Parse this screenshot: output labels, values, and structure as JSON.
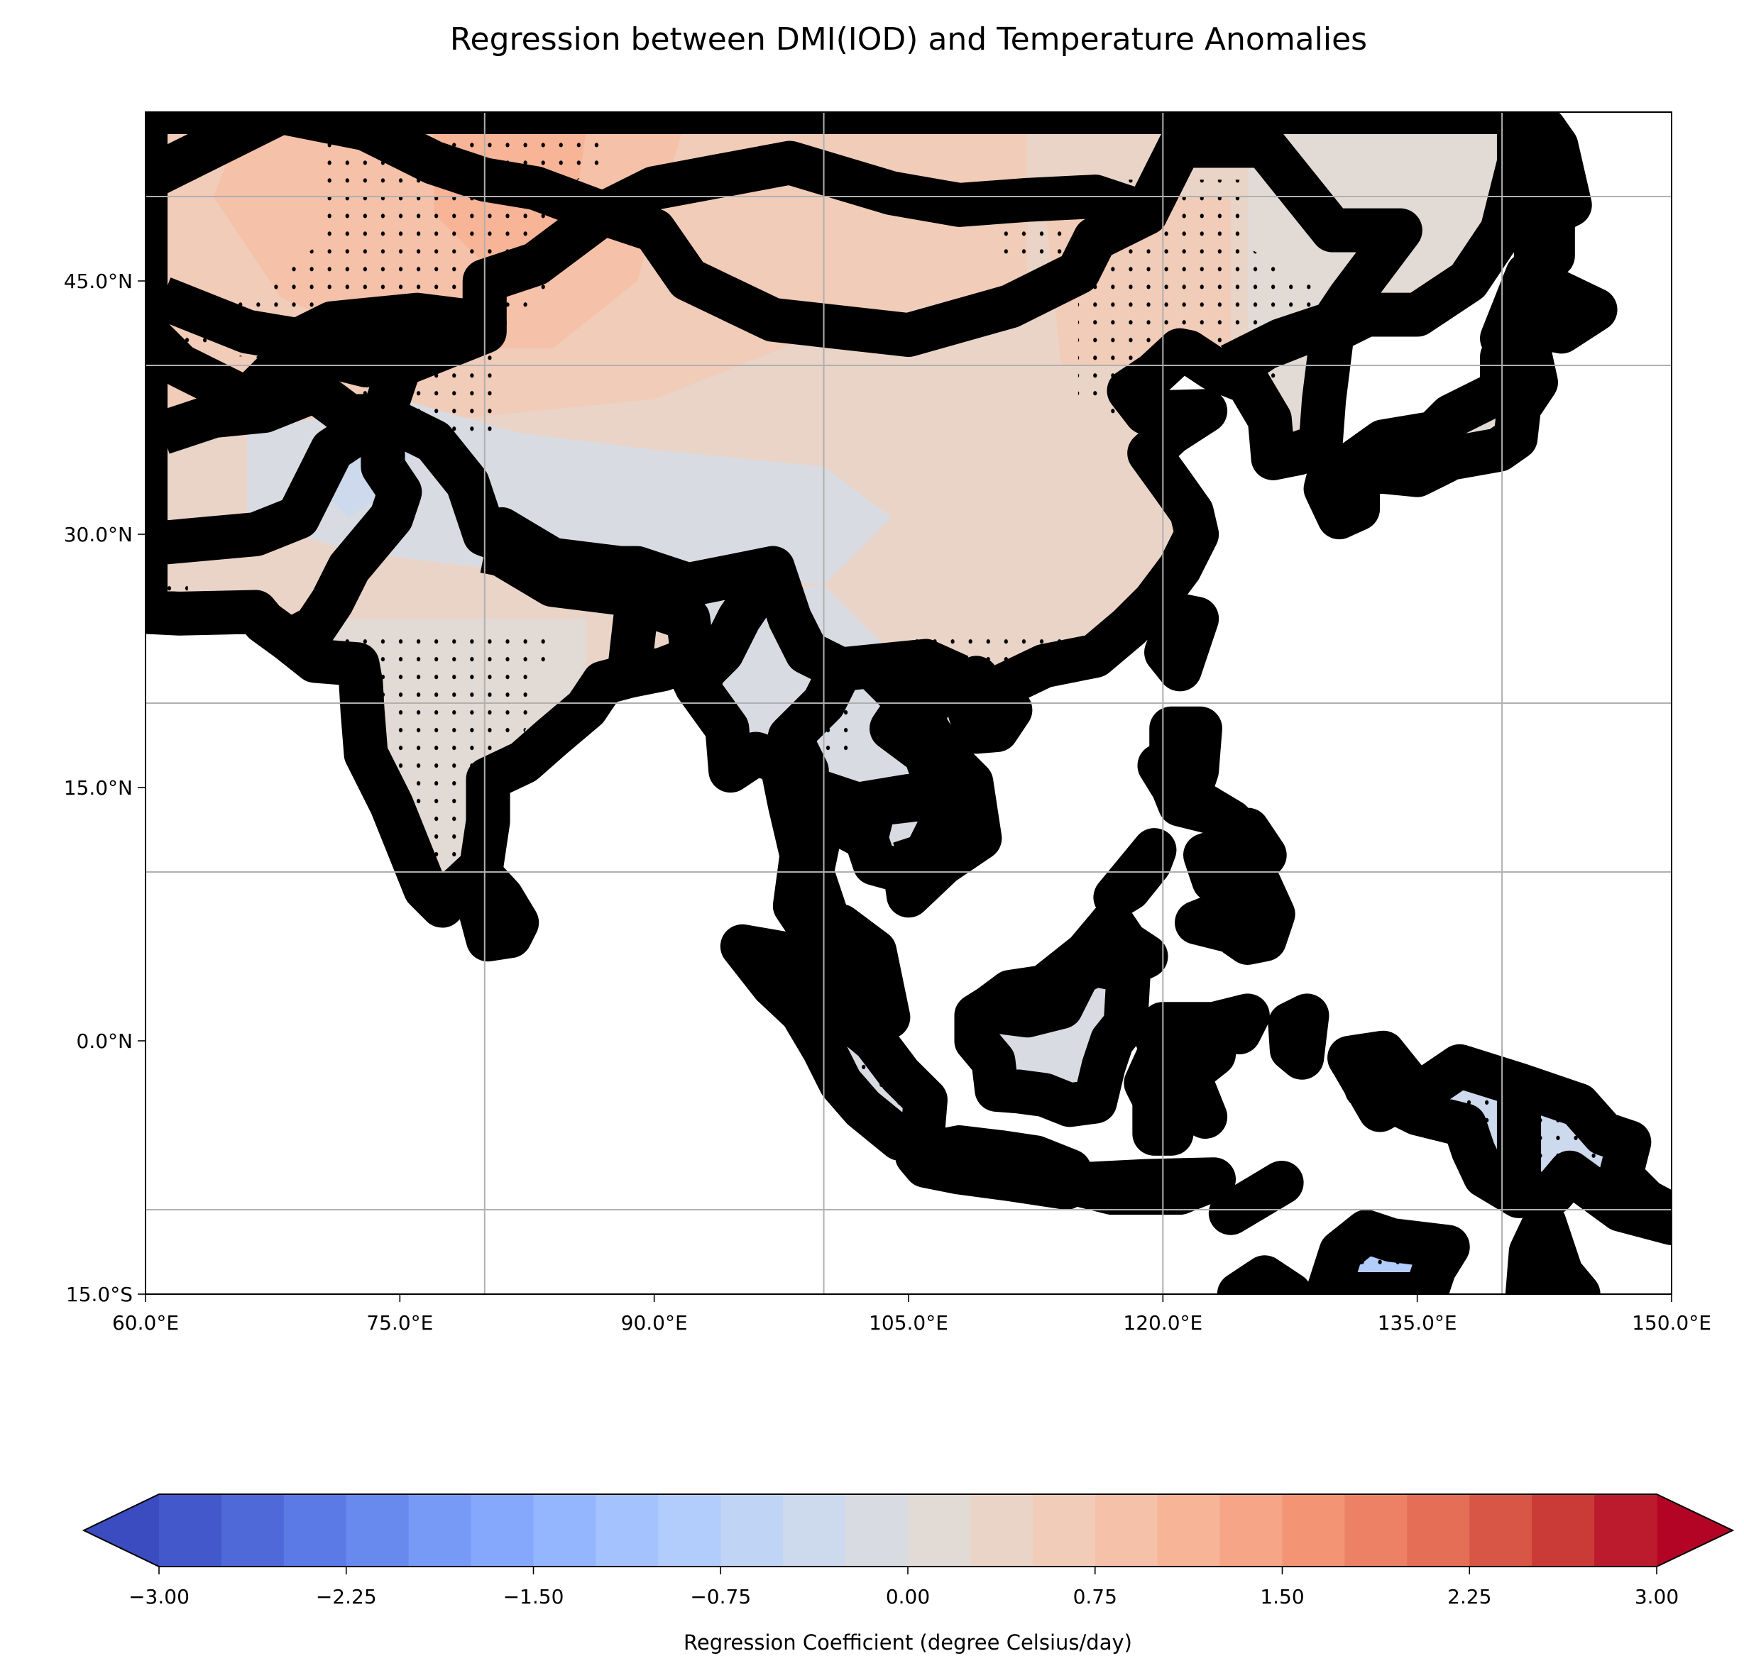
{
  "title": "Regression between DMI(IOD) and Temperature Anomalies",
  "map": {
    "lon_range": [
      60,
      150
    ],
    "lat_range": [
      -15,
      55
    ],
    "x_ticks": [
      {
        "value": 60,
        "label": "60.0°E"
      },
      {
        "value": 75,
        "label": "75.0°E"
      },
      {
        "value": 90,
        "label": "90.0°E"
      },
      {
        "value": 105,
        "label": "105.0°E"
      },
      {
        "value": 120,
        "label": "120.0°E"
      },
      {
        "value": 135,
        "label": "135.0°E"
      },
      {
        "value": 150,
        "label": "150.0°E"
      }
    ],
    "y_ticks": [
      {
        "value": 45,
        "label": "45.0°N"
      },
      {
        "value": 30,
        "label": "30.0°N"
      },
      {
        "value": 15,
        "label": "15.0°N"
      },
      {
        "value": 0,
        "label": "0.0°N"
      },
      {
        "value": -15,
        "label": "15.0°S"
      }
    ],
    "gridlines_lon": [
      80,
      100,
      120,
      140
    ],
    "gridlines_lat": [
      50,
      40,
      20,
      10,
      -10
    ],
    "stippling": "significant regions"
  },
  "colorbar": {
    "label": "Regression Coefficient (degree Celsius/day)",
    "min": -3.0,
    "max": 3.0,
    "step": 0.25,
    "extend": "both",
    "ticks": [
      {
        "value": -3.0,
        "label": "−3.00"
      },
      {
        "value": -2.25,
        "label": "−2.25"
      },
      {
        "value": -1.5,
        "label": "−1.50"
      },
      {
        "value": -0.75,
        "label": "−0.75"
      },
      {
        "value": 0.0,
        "label": "0.00"
      },
      {
        "value": 0.75,
        "label": "0.75"
      },
      {
        "value": 1.5,
        "label": "1.50"
      },
      {
        "value": 2.25,
        "label": "2.25"
      },
      {
        "value": 3.0,
        "label": "3.00"
      }
    ],
    "under_color": "#3b4cc0",
    "over_color": "#b40426",
    "colors": [
      "#4358cb",
      "#4f69d9",
      "#5b7ae5",
      "#688aef",
      "#779af7",
      "#85a8fc",
      "#94b6ff",
      "#a3c2fe",
      "#b2ccfb",
      "#c0d4f5",
      "#cdd9ec",
      "#d8dce2",
      "#e2dad5",
      "#ead4c8",
      "#f1ccb8",
      "#f5c1a9",
      "#f7b497",
      "#f6a586",
      "#f39475",
      "#ec8165",
      "#e46e56",
      "#d85646",
      "#ca3b37",
      "#bb1b2c"
    ]
  }
}
